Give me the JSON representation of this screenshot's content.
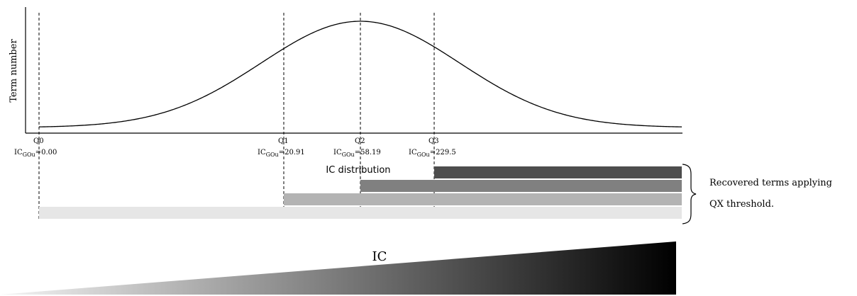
{
  "y_axis_label": "Term number",
  "caption": "IC distribution",
  "quartiles": [
    {
      "name": "Q0",
      "ic_prefix": "IC",
      "ic_sub": "GOu",
      "ic_value": "=0.00"
    },
    {
      "name": "Q1",
      "ic_prefix": "IC",
      "ic_sub": "GOu",
      "ic_value": "=20.91"
    },
    {
      "name": "Q2",
      "ic_prefix": "IC",
      "ic_sub": "GOu",
      "ic_value": "=58.19"
    },
    {
      "name": "Q3",
      "ic_prefix": "IC",
      "ic_sub": "GOu",
      "ic_value": "=229.5"
    }
  ],
  "bars": [
    {
      "from_quartile": "Q3",
      "color": "#4d4d4d"
    },
    {
      "from_quartile": "Q2",
      "color": "#808080"
    },
    {
      "from_quartile": "Q1",
      "color": "#b3b3b3"
    },
    {
      "from_quartile": "Q0",
      "color": "#e6e6e6"
    }
  ],
  "side_text": {
    "line1": "Recovered terms applying",
    "line2": "QX threshold."
  },
  "gradient": {
    "label": "IC",
    "color_start": "#f5f5f5",
    "color_end": "#000000"
  }
}
